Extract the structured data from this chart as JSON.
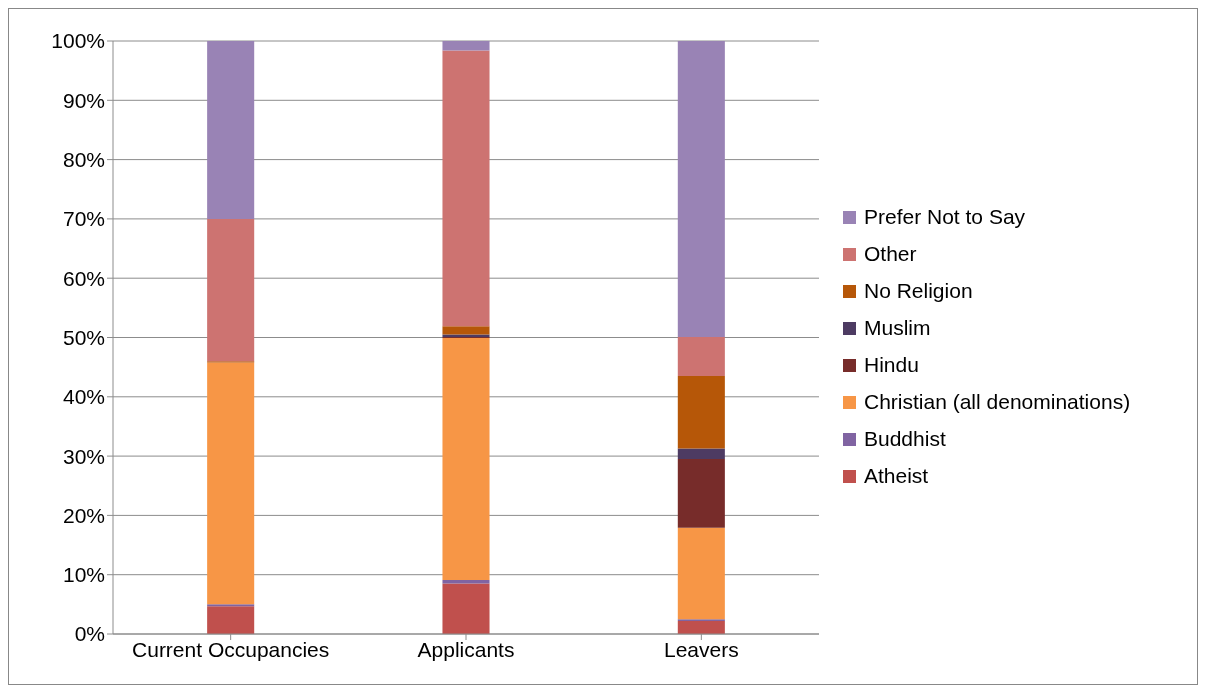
{
  "chart_data": {
    "type": "bar",
    "stacked": true,
    "categories": [
      "Current Occupancies",
      "Applicants",
      "Leavers"
    ],
    "series": [
      {
        "name": "Atheist",
        "color": "#c0504d",
        "values": [
          4.7,
          8.5,
          2.2
        ]
      },
      {
        "name": "Buddhist",
        "color": "#8064a2",
        "values": [
          0.3,
          0.6,
          0.3
        ]
      },
      {
        "name": "Christian (all denominations)",
        "color": "#f79646",
        "values": [
          40.8,
          40.8,
          15.4
        ]
      },
      {
        "name": "Hindu",
        "color": "#772c2a",
        "values": [
          0,
          0.2,
          11.6
        ]
      },
      {
        "name": "Muslim",
        "color": "#4d3b62",
        "values": [
          0,
          0.4,
          1.8
        ]
      },
      {
        "name": "No Religion",
        "color": "#b65708",
        "values": [
          0.2,
          1.4,
          12.2
        ]
      },
      {
        "name": "Other",
        "color": "#cd7371",
        "values": [
          24,
          46.5,
          6.6
        ]
      },
      {
        "name": "Prefer Not to Say",
        "color": "#9983b5",
        "values": [
          30,
          1.6,
          49.9
        ]
      }
    ],
    "ylim": [
      0,
      100
    ],
    "yticks": [
      {
        "value": 0,
        "label": "0%"
      },
      {
        "value": 10,
        "label": "10%"
      },
      {
        "value": 20,
        "label": "20%"
      },
      {
        "value": 30,
        "label": "30%"
      },
      {
        "value": 40,
        "label": "40%"
      },
      {
        "value": 50,
        "label": "50%"
      },
      {
        "value": 60,
        "label": "60%"
      },
      {
        "value": 70,
        "label": "70%"
      },
      {
        "value": 80,
        "label": "80%"
      },
      {
        "value": 90,
        "label": "90%"
      },
      {
        "value": 100,
        "label": "100%"
      }
    ],
    "grid": "y",
    "legend": "right"
  }
}
